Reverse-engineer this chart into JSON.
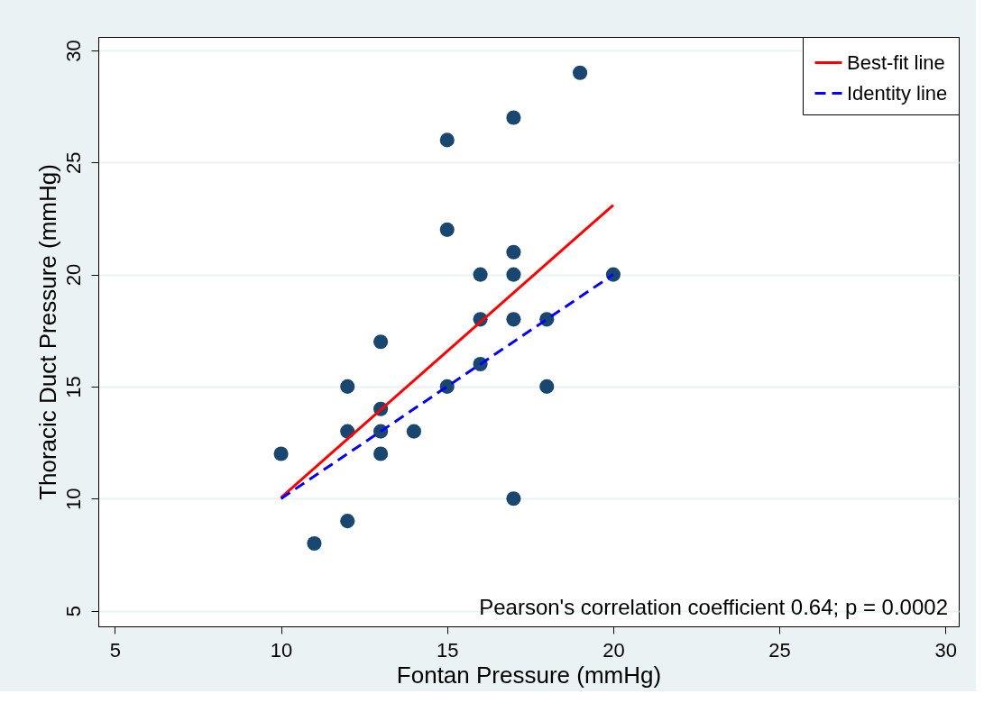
{
  "chart_data": {
    "type": "scatter",
    "xlabel": "Fontan Pressure (mmHg)",
    "ylabel": "Thoracic Duct Pressure (mmHg)",
    "xlim": [
      4.5,
      30.4
    ],
    "ylim": [
      4.3,
      30.6
    ],
    "xticks": [
      5,
      10,
      15,
      20,
      25,
      30
    ],
    "yticks": [
      5,
      10,
      15,
      20,
      25,
      30
    ],
    "grid": "y",
    "legend": "top right",
    "series": [
      {
        "type": "scatter",
        "marker": "circle",
        "color": "#1a476f",
        "x": [
          10,
          11,
          12,
          12,
          12,
          13,
          13,
          13,
          13,
          14,
          15,
          15,
          15,
          16,
          16,
          16,
          17,
          17,
          17,
          17,
          17,
          18,
          18,
          19,
          20
        ],
        "values": [
          12,
          8,
          9,
          13,
          15,
          12,
          13,
          14,
          17,
          13,
          15,
          22,
          26,
          16,
          18,
          20,
          10,
          18,
          20,
          21,
          27,
          15,
          18,
          29,
          20
        ]
      },
      {
        "type": "line",
        "name": "Best-fit line",
        "color": "#ff0000",
        "line_style": "solid",
        "marker": "none",
        "x": [
          10,
          20
        ],
        "values": [
          10.05,
          23.1
        ]
      },
      {
        "type": "line",
        "name": "Identity line",
        "color": "#0000ff",
        "line_style": "dashed",
        "marker": "none",
        "x": [
          10,
          20
        ],
        "values": [
          10,
          20
        ]
      }
    ],
    "annotations": [
      "Pearson's correlation coefficient 0.64; p = 0.0002"
    ]
  }
}
